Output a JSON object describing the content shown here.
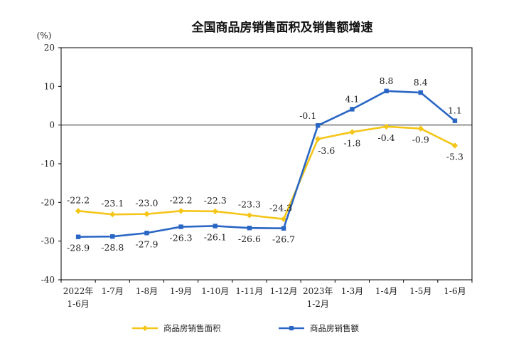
{
  "chart_data": {
    "type": "line",
    "title": "全国商品房销售面积及销售额增速",
    "unit": "(%)",
    "xlabel": "",
    "ylabel": "",
    "ylim": [
      -40,
      20
    ],
    "yticks": [
      "20",
      "10",
      "0",
      "-10",
      "-20",
      "-30",
      "-40"
    ],
    "ytick_values": [
      20,
      10,
      0,
      -10,
      -20,
      -30,
      -40
    ],
    "categories": [
      {
        "line1": "2022年",
        "line2": "1-6月"
      },
      {
        "line1": "1-7月",
        "line2": ""
      },
      {
        "line1": "1-8月",
        "line2": ""
      },
      {
        "line1": "1-9月",
        "line2": ""
      },
      {
        "line1": "1-10月",
        "line2": ""
      },
      {
        "line1": "1-11月",
        "line2": ""
      },
      {
        "line1": "1-12月",
        "line2": ""
      },
      {
        "line1": "2023年",
        "line2": "1-2月"
      },
      {
        "line1": "1-3月",
        "line2": ""
      },
      {
        "line1": "1-4月",
        "line2": ""
      },
      {
        "line1": "1-5月",
        "line2": ""
      },
      {
        "line1": "1-6月",
        "line2": ""
      }
    ],
    "series": [
      {
        "name": "商品房销售面积",
        "color": "#f5c518",
        "marker": "diamond",
        "values": [
          -22.2,
          -23.1,
          -23.0,
          -22.2,
          -22.3,
          -23.3,
          -24.3,
          -3.6,
          -1.8,
          -0.4,
          -0.9,
          -5.3
        ],
        "labels": [
          "-22.2",
          "-23.1",
          "-23.0",
          "-22.2",
          "-22.3",
          "-23.3",
          "-24.3",
          "-3.6",
          "-1.8",
          "-0.4",
          "-0.9",
          "-5.3"
        ]
      },
      {
        "name": "商品房销售额",
        "color": "#2a66c4",
        "marker": "square",
        "values": [
          -28.9,
          -28.8,
          -27.9,
          -26.3,
          -26.1,
          -26.6,
          -26.7,
          -0.1,
          4.1,
          8.8,
          8.4,
          1.1
        ],
        "labels": [
          "-28.9",
          "-28.8",
          "-27.9",
          "-26.3",
          "-26.1",
          "-26.6",
          "-26.7",
          "-0.1",
          "4.1",
          "8.8",
          "8.4",
          "1.1"
        ]
      }
    ],
    "legend_position": "bottom",
    "grid": false
  }
}
